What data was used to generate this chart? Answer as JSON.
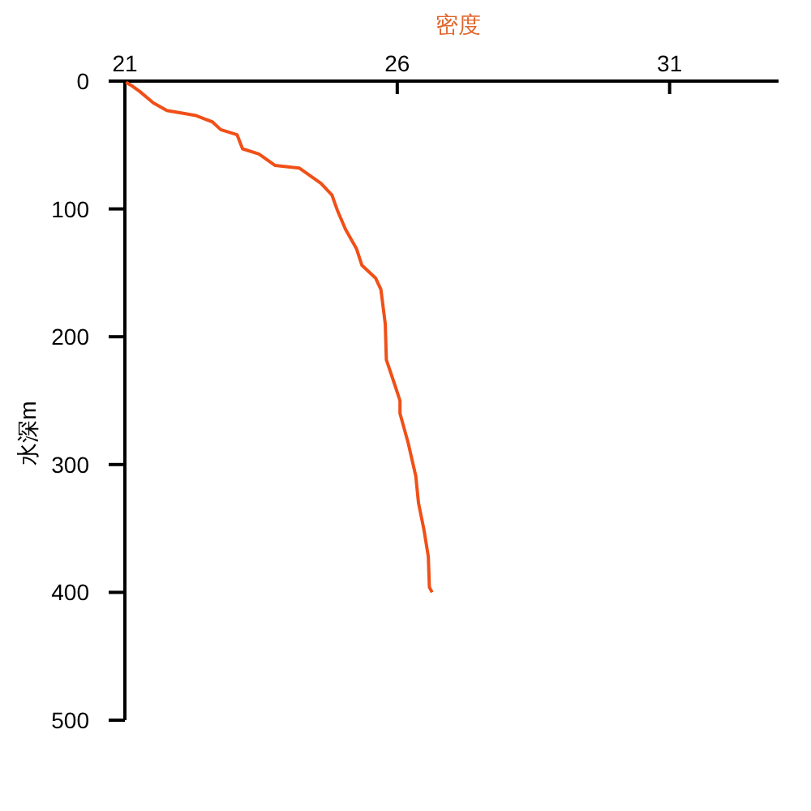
{
  "chart_data": {
    "type": "line",
    "xlabel": "密度",
    "ylabel": "水深m",
    "xlim": [
      21,
      33
    ],
    "xticks": [
      21,
      26,
      31
    ],
    "ylim": [
      500,
      0
    ],
    "yticks": [
      0,
      100,
      200,
      300,
      400,
      500
    ],
    "grid": false,
    "series": [
      {
        "color": "#f05018",
        "x": [
          21.02,
          21.14,
          21.27,
          21.52,
          21.77,
          22.31,
          22.61,
          22.76,
          23.06,
          23.16,
          23.46,
          23.76,
          24.2,
          24.6,
          24.8,
          24.9,
          25.05,
          25.25,
          25.35,
          25.6,
          25.7,
          25.78,
          25.8,
          25.95,
          26.05,
          26.05,
          26.2,
          26.34,
          26.39,
          26.49,
          26.57,
          26.59,
          26.64
        ],
        "values": [
          1,
          4,
          8,
          17,
          23,
          27,
          32,
          38,
          42,
          53,
          57,
          66,
          68,
          80,
          89,
          101,
          116,
          131,
          144,
          154,
          163,
          190,
          218,
          237,
          250,
          260,
          283,
          309,
          330,
          351,
          372,
          396,
          400
        ]
      }
    ]
  }
}
